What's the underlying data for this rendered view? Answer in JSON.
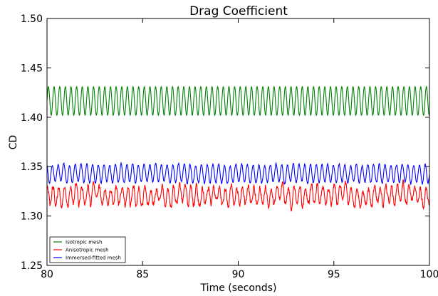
{
  "chart_data": {
    "type": "line",
    "title": "Drag Coefficient",
    "xlabel": "Time (seconds)",
    "ylabel": "CD",
    "xlim": [
      80,
      100
    ],
    "ylim": [
      1.25,
      1.5
    ],
    "xticks": [
      "80",
      "85",
      "90",
      "95",
      "100"
    ],
    "yticks": [
      "1.25",
      "1.30",
      "1.35",
      "1.40",
      "1.45",
      "1.50"
    ],
    "grid": false,
    "legend_position": "bottom-left",
    "series": [
      {
        "name": "Isotropic mesh",
        "color": "#008000",
        "mean": 1.4165,
        "amplitude": 0.0145,
        "period": 0.295,
        "noise": 0
      },
      {
        "name": "Anisotropic mesh",
        "color": "#ff0000",
        "mean": 1.3205,
        "amplitude": 0.009,
        "period": 0.3,
        "noise": 0.005
      },
      {
        "name": "Immersed-fitted mesh",
        "color": "#0000ff",
        "mean": 1.343,
        "amplitude": 0.009,
        "period": 0.3,
        "noise": 0.0015
      }
    ]
  }
}
